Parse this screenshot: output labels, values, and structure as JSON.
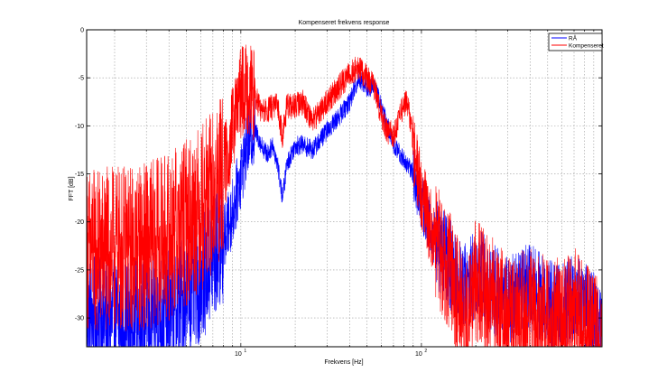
{
  "chart_data": {
    "type": "line",
    "title": "Kompenseret frekvens response",
    "xlabel": "Frekvens [Hz]",
    "ylabel": "FFT [dB]",
    "xscale": "log",
    "xlim": [
      1.4,
      1000
    ],
    "ylim": [
      -33,
      0
    ],
    "yticks": [
      0,
      -5,
      -10,
      -15,
      -20,
      -25,
      -30
    ],
    "xticks": [
      {
        "value": 10,
        "base": "10",
        "exp": "1"
      },
      {
        "value": 100,
        "base": "10",
        "exp": "2"
      }
    ],
    "grid": true,
    "legend_position": "top-right",
    "series": [
      {
        "name": "RÅ",
        "color": "#0000ff",
        "noise_amplitude": 3,
        "values": [
          [
            1.4,
            -30
          ],
          [
            2,
            -30.5
          ],
          [
            3,
            -30
          ],
          [
            4,
            -29.5
          ],
          [
            5,
            -27.5
          ],
          [
            6,
            -26
          ],
          [
            7,
            -24
          ],
          [
            8,
            -22
          ],
          [
            9,
            -19
          ],
          [
            10,
            -15
          ],
          [
            11,
            -11.5
          ],
          [
            12,
            -10.5
          ],
          [
            13,
            -12
          ],
          [
            14,
            -13
          ],
          [
            15,
            -12
          ],
          [
            16,
            -14
          ],
          [
            17,
            -17.5
          ],
          [
            18,
            -14
          ],
          [
            20,
            -12
          ],
          [
            22,
            -12
          ],
          [
            25,
            -12.5
          ],
          [
            30,
            -10.5
          ],
          [
            35,
            -9
          ],
          [
            40,
            -7.5
          ],
          [
            45,
            -5
          ],
          [
            50,
            -6
          ],
          [
            55,
            -6
          ],
          [
            60,
            -8
          ],
          [
            65,
            -10
          ],
          [
            70,
            -12
          ],
          [
            80,
            -13.5
          ],
          [
            90,
            -15
          ],
          [
            100,
            -18
          ],
          [
            110,
            -20
          ],
          [
            120,
            -22
          ],
          [
            140,
            -24
          ],
          [
            160,
            -26
          ],
          [
            180,
            -27
          ],
          [
            200,
            -25
          ],
          [
            250,
            -27
          ],
          [
            300,
            -28
          ],
          [
            400,
            -27
          ],
          [
            500,
            -28
          ],
          [
            600,
            -29
          ],
          [
            700,
            -28
          ],
          [
            800,
            -29
          ],
          [
            900,
            -30
          ],
          [
            1000,
            -32
          ]
        ]
      },
      {
        "name": "Kompenseret",
        "color": "#ff0000",
        "noise_amplitude": 4,
        "values": [
          [
            1.4,
            -23
          ],
          [
            2,
            -23
          ],
          [
            3,
            -22.5
          ],
          [
            4,
            -21.5
          ],
          [
            5,
            -20
          ],
          [
            6,
            -18.5
          ],
          [
            7,
            -17
          ],
          [
            8,
            -15
          ],
          [
            9,
            -10.5
          ],
          [
            10,
            -6.5
          ],
          [
            11,
            -6
          ],
          [
            12,
            -7
          ],
          [
            13,
            -8.5
          ],
          [
            14,
            -8.5
          ],
          [
            15,
            -8
          ],
          [
            16,
            -8
          ],
          [
            17,
            -11
          ],
          [
            18,
            -8
          ],
          [
            20,
            -8
          ],
          [
            22,
            -7.5
          ],
          [
            25,
            -9.5
          ],
          [
            30,
            -7.5
          ],
          [
            35,
            -6
          ],
          [
            40,
            -4.5
          ],
          [
            45,
            -4
          ],
          [
            50,
            -5
          ],
          [
            55,
            -6
          ],
          [
            60,
            -9
          ],
          [
            65,
            -10.5
          ],
          [
            70,
            -11
          ],
          [
            75,
            -9.5
          ],
          [
            80,
            -7.5
          ],
          [
            85,
            -8
          ],
          [
            90,
            -12
          ],
          [
            100,
            -17
          ],
          [
            110,
            -20
          ],
          [
            120,
            -22
          ],
          [
            140,
            -24.5
          ],
          [
            160,
            -28
          ],
          [
            180,
            -30
          ],
          [
            200,
            -26
          ],
          [
            250,
            -28
          ],
          [
            300,
            -30
          ],
          [
            400,
            -29
          ],
          [
            500,
            -30
          ],
          [
            600,
            -30
          ],
          [
            700,
            -29
          ],
          [
            800,
            -30
          ],
          [
            900,
            -31
          ],
          [
            1000,
            -33
          ]
        ]
      }
    ]
  }
}
